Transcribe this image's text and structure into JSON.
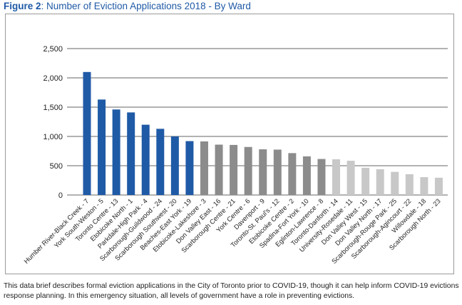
{
  "figure": {
    "title_lead": "Figure 2",
    "title_rest": ": Number of Eviction Applications 2018 - By Ward"
  },
  "caption": "This data brief describes formal eviction applications in the City of Toronto prior to COVID-19, though it can help inform COVID-19 evictions response planning. In this emergency situation, all levels of government have a role in preventing evictions.",
  "colors": {
    "dark": "#1f5aa6",
    "mid": "#8c8c8c",
    "light": "#c8c8c8",
    "grid": "#333333"
  },
  "chart_data": {
    "type": "bar",
    "title": "Number of Eviction Applications 2018 - By Ward",
    "xlabel": "",
    "ylabel": "",
    "ylim": [
      0,
      2500
    ],
    "yticks": [
      0,
      500,
      1000,
      1500,
      2000,
      2500
    ],
    "ytick_labels": [
      "0",
      "500",
      "1,000",
      "1,500",
      "2,000",
      "2,500"
    ],
    "grid": true,
    "categories": [
      "Humber River-Black Creek - 7",
      "York South-Weston - 5",
      "Toronto Centre - 13",
      "Etobicoke North - 1",
      "Parkdale-High Park - 4",
      "Scarborough-Guildwood - 24",
      "Scarborough Southwest - 20",
      "Beaches-East York - 19",
      "Etobicoke-Lakeshore - 3",
      "Don Valley East - 16",
      "Scarborough Centre - 21",
      "York Centre - 6",
      "Davenport - 9",
      "Toronto-St. Paul's - 12",
      "Etobicoke Centre - 2",
      "Spadina-Fort York - 10",
      "Eglinton-Lawrence - 8",
      "Toronto-Danforth - 14",
      "University-Rosedale - 11",
      "Don Valley West - 15",
      "Don Valley North - 17",
      "Scarborough-Rouge Park - 25",
      "Scarborough-Agincourt - 22",
      "Willowdale - 18",
      "Scarborough North - 23"
    ],
    "values": [
      2100,
      1630,
      1460,
      1410,
      1200,
      1130,
      1000,
      920,
      915,
      860,
      855,
      820,
      780,
      775,
      715,
      660,
      615,
      610,
      585,
      465,
      440,
      395,
      355,
      305,
      295
    ],
    "bar_color_groups": [
      "dark",
      "dark",
      "dark",
      "dark",
      "dark",
      "dark",
      "dark",
      "dark",
      "mid",
      "mid",
      "mid",
      "mid",
      "mid",
      "mid",
      "mid",
      "mid",
      "mid",
      "light",
      "light",
      "light",
      "light",
      "light",
      "light",
      "light",
      "light"
    ]
  }
}
